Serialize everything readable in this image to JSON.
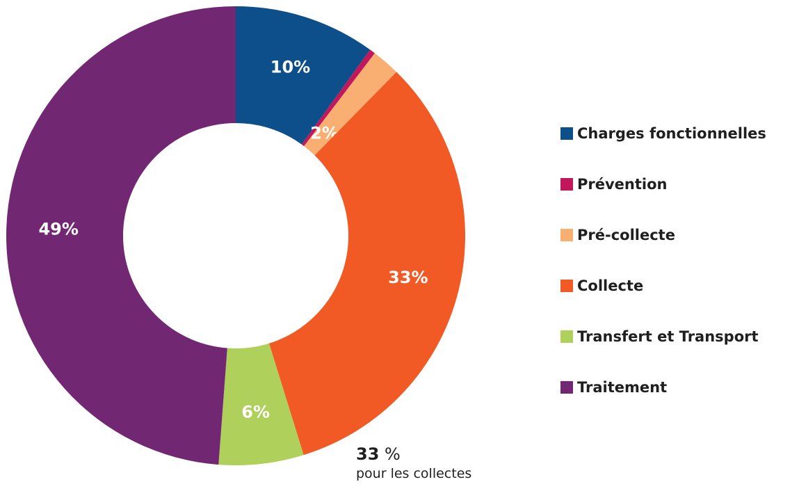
{
  "chart_data": {
    "type": "pie",
    "donut": true,
    "title": "",
    "categories": [
      "Charges fonctionnelles",
      "Prévention",
      "Pré-collecte",
      "Collecte",
      "Transfert et Transport",
      "Traitement"
    ],
    "values": [
      10,
      0.4,
      2,
      33,
      6,
      49
    ],
    "data_labels": [
      "10%",
      "",
      "2%",
      "33%",
      "6%",
      "49%"
    ],
    "colors": [
      "#0d4f8b",
      "#c2185b",
      "#f9ae72",
      "#f15a24",
      "#afd05a",
      "#722773"
    ],
    "legend_placement": "right"
  },
  "annotation": {
    "value": "33",
    "unit": "%",
    "text": "pour  les collectes"
  }
}
